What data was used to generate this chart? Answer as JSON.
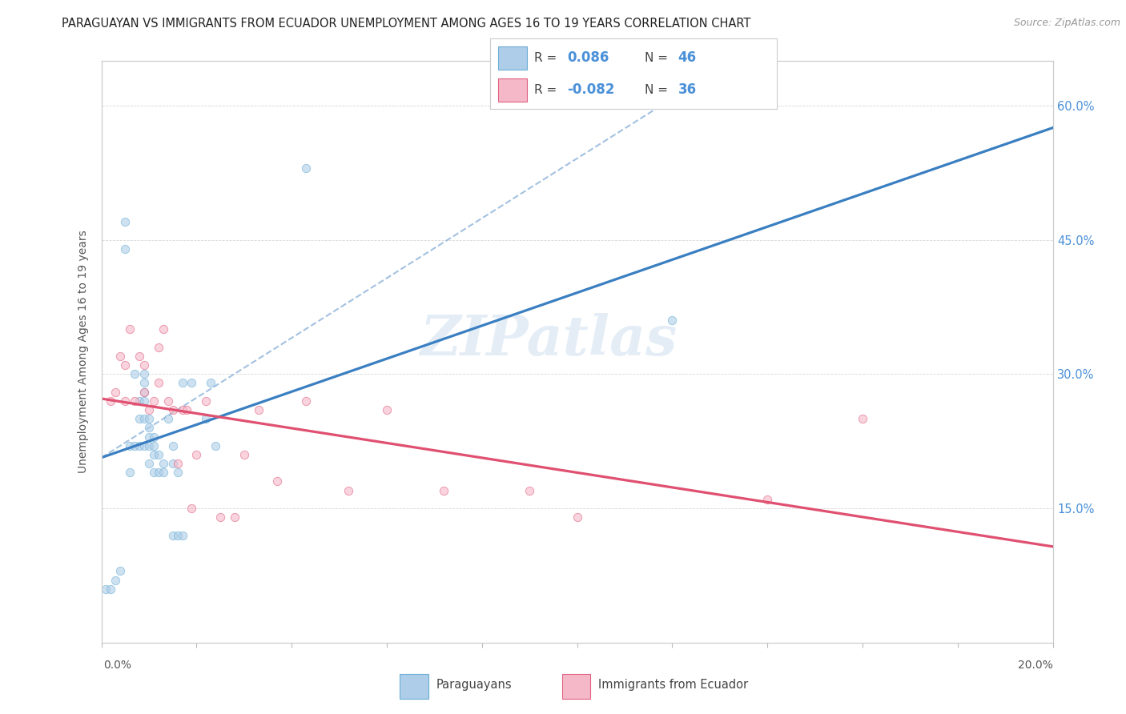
{
  "title": "PARAGUAYAN VS IMMIGRANTS FROM ECUADOR UNEMPLOYMENT AMONG AGES 16 TO 19 YEARS CORRELATION CHART",
  "source": "Source: ZipAtlas.com",
  "ylabel": "Unemployment Among Ages 16 to 19 years",
  "y_ticks": [
    0.0,
    0.15,
    0.3,
    0.45,
    0.6
  ],
  "y_tick_labels_right": [
    "",
    "15.0%",
    "30.0%",
    "45.0%",
    "60.0%"
  ],
  "x_range": [
    0.0,
    0.2
  ],
  "y_range": [
    0.0,
    0.65
  ],
  "legend_R_blue": "0.086",
  "legend_N_blue": "46",
  "legend_R_pink": "-0.082",
  "legend_N_pink": "36",
  "watermark_text": "ZIPatlas",
  "blue_scatter_color": "#aecde8",
  "pink_scatter_color": "#f5b8c8",
  "blue_edge_color": "#6baed6",
  "pink_edge_color": "#e06080",
  "line_blue_color": "#3a7fc1",
  "line_pink_color": "#e05070",
  "line_dashed_color": "#99bbdd",
  "paraguayan_x": [
    0.001,
    0.002,
    0.003,
    0.004,
    0.005,
    0.005,
    0.006,
    0.006,
    0.007,
    0.007,
    0.008,
    0.008,
    0.008,
    0.009,
    0.009,
    0.009,
    0.009,
    0.009,
    0.009,
    0.01,
    0.01,
    0.01,
    0.01,
    0.01,
    0.011,
    0.011,
    0.011,
    0.011,
    0.012,
    0.012,
    0.013,
    0.013,
    0.014,
    0.015,
    0.015,
    0.015,
    0.016,
    0.016,
    0.017,
    0.017,
    0.019,
    0.022,
    0.023,
    0.024,
    0.043,
    0.12
  ],
  "paraguayan_y": [
    0.06,
    0.06,
    0.07,
    0.08,
    0.47,
    0.44,
    0.22,
    0.19,
    0.3,
    0.22,
    0.27,
    0.25,
    0.22,
    0.3,
    0.29,
    0.28,
    0.27,
    0.25,
    0.22,
    0.25,
    0.24,
    0.23,
    0.22,
    0.2,
    0.23,
    0.22,
    0.21,
    0.19,
    0.21,
    0.19,
    0.2,
    0.19,
    0.25,
    0.22,
    0.2,
    0.12,
    0.19,
    0.12,
    0.29,
    0.12,
    0.29,
    0.25,
    0.29,
    0.22,
    0.53,
    0.36
  ],
  "ecuador_x": [
    0.002,
    0.003,
    0.004,
    0.005,
    0.005,
    0.006,
    0.007,
    0.008,
    0.009,
    0.009,
    0.01,
    0.011,
    0.012,
    0.012,
    0.013,
    0.014,
    0.015,
    0.016,
    0.017,
    0.018,
    0.019,
    0.02,
    0.022,
    0.025,
    0.028,
    0.03,
    0.033,
    0.037,
    0.043,
    0.052,
    0.06,
    0.072,
    0.09,
    0.1,
    0.14,
    0.16
  ],
  "ecuador_y": [
    0.27,
    0.28,
    0.32,
    0.31,
    0.27,
    0.35,
    0.27,
    0.32,
    0.31,
    0.28,
    0.26,
    0.27,
    0.33,
    0.29,
    0.35,
    0.27,
    0.26,
    0.2,
    0.26,
    0.26,
    0.15,
    0.21,
    0.27,
    0.14,
    0.14,
    0.21,
    0.26,
    0.18,
    0.27,
    0.17,
    0.26,
    0.17,
    0.17,
    0.14,
    0.16,
    0.25
  ],
  "title_fontsize": 10.5,
  "source_fontsize": 9,
  "marker_size": 55,
  "marker_alpha": 0.6
}
